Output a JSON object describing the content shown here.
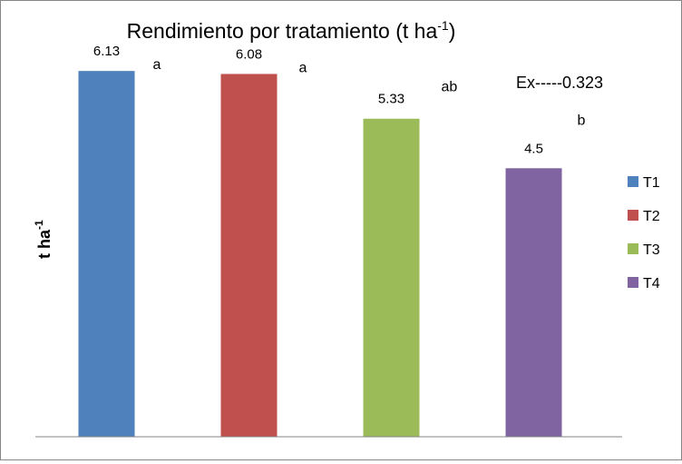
{
  "chart_data": {
    "type": "bar",
    "title_main": "Rendimiento por tratamiento (t ha",
    "title_sup": "-1",
    "title_end": ")",
    "ylabel_main": "t ha",
    "ylabel_sup": "-1",
    "xlabel": "",
    "categories": [
      "T1",
      "T2",
      "T3",
      "T4"
    ],
    "values": [
      6.13,
      6.08,
      5.33,
      4.5
    ],
    "value_labels": [
      "6.13",
      "6.08",
      "5.33",
      "4.5"
    ],
    "significance": [
      "a",
      "a",
      "ab",
      "b"
    ],
    "colors": [
      "#4f81bd",
      "#c0504d",
      "#9bbb59",
      "#8064a2"
    ],
    "legend": [
      "T1",
      "T2",
      "T3",
      "T4"
    ],
    "legend_position": "right",
    "annotation": "Ex-----0.323",
    "ylim": [
      0,
      7
    ],
    "grid": false
  }
}
